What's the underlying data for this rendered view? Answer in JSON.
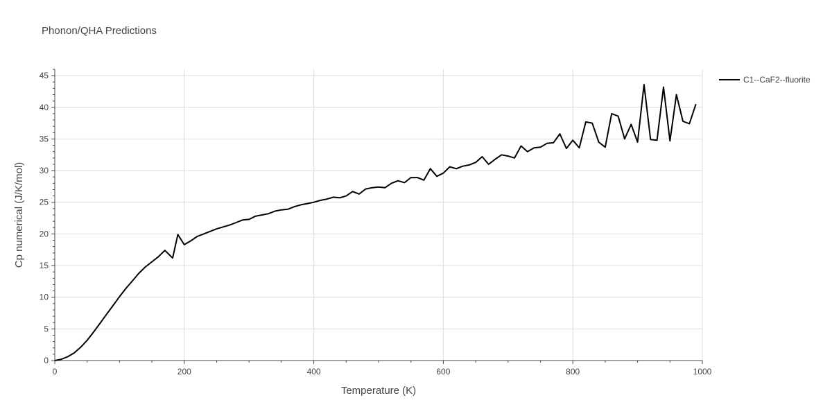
{
  "chart_data": {
    "type": "line",
    "title": "Phonon/QHA Predictions",
    "xlabel": "Temperature (K)",
    "ylabel": "Cp numerical (J/K/mol)",
    "xlim": [
      0,
      1000
    ],
    "ylim": [
      0,
      46
    ],
    "xticks": [
      0,
      200,
      400,
      600,
      800,
      1000
    ],
    "yticks": [
      0,
      5,
      10,
      15,
      20,
      25,
      30,
      35,
      40,
      45
    ],
    "grid": true,
    "legend_position": "top-right",
    "series": [
      {
        "name": "C1--CaF2--fluorite",
        "color": "#000000",
        "x": [
          0,
          10,
          20,
          30,
          40,
          50,
          60,
          70,
          80,
          90,
          100,
          110,
          120,
          130,
          140,
          150,
          160,
          165,
          170,
          175,
          182,
          190,
          200,
          210,
          220,
          230,
          240,
          250,
          260,
          270,
          280,
          290,
          300,
          310,
          320,
          330,
          340,
          350,
          360,
          370,
          380,
          390,
          400,
          410,
          420,
          430,
          440,
          450,
          460,
          470,
          480,
          490,
          500,
          510,
          520,
          530,
          540,
          550,
          560,
          570,
          580,
          590,
          600,
          610,
          620,
          630,
          640,
          650,
          660,
          670,
          680,
          690,
          700,
          710,
          720,
          730,
          740,
          750,
          760,
          770,
          780,
          790,
          800,
          810,
          820,
          830,
          840,
          850,
          860,
          870,
          880,
          890,
          900,
          910,
          920,
          930,
          940,
          950,
          960,
          970,
          980,
          990
        ],
        "values": [
          0,
          0.2,
          0.6,
          1.2,
          2.1,
          3.2,
          4.5,
          5.9,
          7.3,
          8.7,
          10.1,
          11.4,
          12.6,
          13.8,
          14.8,
          15.6,
          16.4,
          16.9,
          17.4,
          16.9,
          16.2,
          19.9,
          18.3,
          18.9,
          19.6,
          20.0,
          20.4,
          20.8,
          21.1,
          21.4,
          21.8,
          22.2,
          22.3,
          22.8,
          23.0,
          23.2,
          23.6,
          23.8,
          23.9,
          24.3,
          24.6,
          24.8,
          25.0,
          25.3,
          25.5,
          25.8,
          25.7,
          26.0,
          26.7,
          26.3,
          27.1,
          27.3,
          27.4,
          27.3,
          28.0,
          28.4,
          28.1,
          28.9,
          28.9,
          28.5,
          30.3,
          29.1,
          29.6,
          30.6,
          30.3,
          30.7,
          30.9,
          31.3,
          32.2,
          31.0,
          31.8,
          32.5,
          32.3,
          32.0,
          33.9,
          33.0,
          33.6,
          33.7,
          34.3,
          34.4,
          35.8,
          33.5,
          34.8,
          33.6,
          37.7,
          37.5,
          34.5,
          33.7,
          39.0,
          38.6,
          35.0,
          37.3,
          34.5,
          43.6,
          34.9,
          34.8,
          43.2,
          34.7,
          42.0,
          37.8,
          37.4,
          40.5
        ]
      }
    ]
  }
}
